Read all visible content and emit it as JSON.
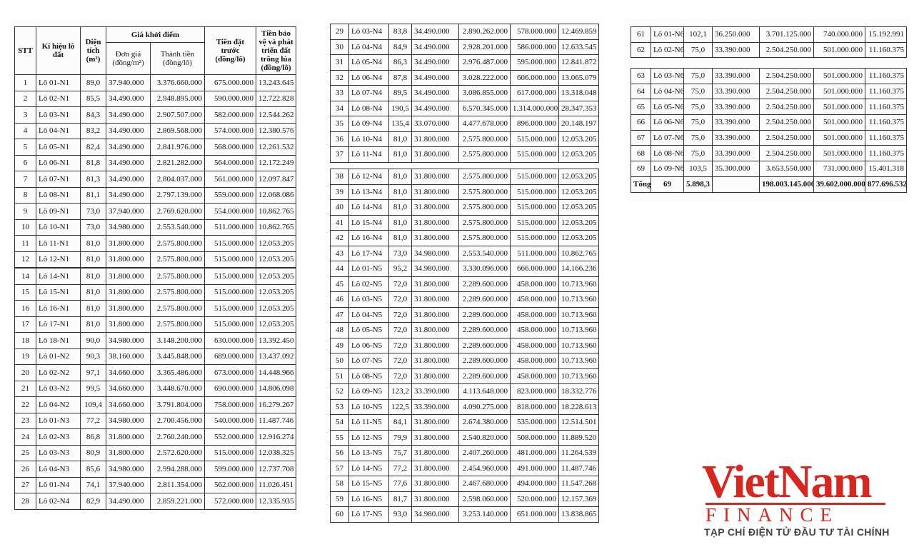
{
  "header": {
    "stt": "STT",
    "lot": "Kí hiệu lô đất",
    "area": "Diện tích (m²)",
    "group": "Giá khởi điểm",
    "unit_price": "Đơn giá (đồng/m²)",
    "total_price": "Thành tiền (đồng/lô)",
    "deposit": "Tiền đặt trước (đồng/lô)",
    "rice_fee": "Tiền bảo vệ và phát triển đất trồng lúa (đồng/lô)"
  },
  "blocks": [
    {
      "rows": [
        [
          "1",
          "Lô 01-N1",
          "89,0",
          "37.940.000",
          "3.376.660.000",
          "675.000.000",
          "13.243.645"
        ],
        [
          "2",
          "Lô 02-N1",
          "85,5",
          "34.490.000",
          "2.948.895.000",
          "590.000.000",
          "12.722.828"
        ],
        [
          "3",
          "Lô 03-N1",
          "84,3",
          "34.490.000",
          "2.907.507.000",
          "582.000.000",
          "12.544.262"
        ],
        [
          "4",
          "Lô 04-N1",
          "83,2",
          "34.490.000",
          "2.869.568.000",
          "574.000.000",
          "12.380.576"
        ],
        [
          "5",
          "Lô 05-N1",
          "82,4",
          "34.490.000",
          "2.841.976.000",
          "568.000.000",
          "12.261.532"
        ],
        [
          "6",
          "Lô 06-N1",
          "81,8",
          "34.490.000",
          "2.821.282.000",
          "564.000.000",
          "12.172.249"
        ],
        [
          "7",
          "Lô 07-N1",
          "81,3",
          "34.490.000",
          "2.804.037.000",
          "561.000.000",
          "12.097.847"
        ],
        [
          "8",
          "Lô 08-N1",
          "81,1",
          "34.490.000",
          "2.797.139.000",
          "559.000.000",
          "12.068.086"
        ],
        [
          "9",
          "Lô 09-N1",
          "73,0",
          "37.940.000",
          "2.769.620.000",
          "554.000.000",
          "10.862.765"
        ],
        [
          "10",
          "Lô 10-N1",
          "73,0",
          "34.980.000",
          "2.553.540.000",
          "511.000.000",
          "10.862.765"
        ],
        [
          "11",
          "Lô 11-N1",
          "81,0",
          "31.800.000",
          "2.575.800.000",
          "515.000.000",
          "12.053.205"
        ],
        [
          "12",
          "Lô 12-N1",
          "81,0",
          "31.800.000",
          "2.575.800.000",
          "515.000.000",
          "12.053.205"
        ]
      ]
    },
    {
      "rows": [
        [
          "14",
          "Lô 14-N1",
          "81,0",
          "31.800.000",
          "2.575.800.000",
          "515.000.000",
          "12.053.205"
        ],
        [
          "15",
          "Lô 15-N1",
          "81,0",
          "31.800.000",
          "2.575.800.000",
          "515.000.000",
          "12.053.205"
        ],
        [
          "16",
          "Lô 16-N1",
          "81,0",
          "31.800.000",
          "2.575.800.000",
          "515.000.000",
          "12.053.205"
        ],
        [
          "17",
          "Lô 17-N1",
          "81,0",
          "31.800.000",
          "2.575.800.000",
          "515.000.000",
          "12.053.205"
        ],
        [
          "18",
          "Lô 18-N1",
          "90,0",
          "34.980.000",
          "3.148.200.000",
          "630.000.000",
          "13.392.450"
        ],
        [
          "19",
          "Lô 01-N2",
          "90,3",
          "38.160.000",
          "3.445.848.000",
          "689.000.000",
          "13.437.092"
        ],
        [
          "20",
          "Lô 02-N2",
          "97,1",
          "34.660.000",
          "3.365.486.000",
          "673.000.000",
          "14.448.966"
        ],
        [
          "21",
          "Lô 03-N2",
          "99,5",
          "34.660.000",
          "3.448.670.000",
          "690.000.000",
          "14.806.098"
        ],
        [
          "22",
          "Lô 04-N2",
          "109,4",
          "34.660.000",
          "3.791.804.000",
          "758.000.000",
          "16.279.267"
        ],
        [
          "23",
          "Lô 01-N3",
          "77,2",
          "34.980.000",
          "2.700.456.000",
          "540.000.000",
          "11.487.746"
        ],
        [
          "24",
          "Lô 02-N3",
          "86,8",
          "31.800.000",
          "2.760.240.000",
          "552.000.000",
          "12.916.274"
        ],
        [
          "25",
          "Lô 03-N3",
          "80,9",
          "31.800.000",
          "2.572.620.000",
          "515.000.000",
          "12.038.325"
        ],
        [
          "26",
          "Lô 04-N3",
          "85,6",
          "34.980.000",
          "2.994.288.000",
          "599.000.000",
          "12.737.708"
        ],
        [
          "27",
          "Lô 01-N4",
          "74,1",
          "37.940.000",
          "2.811.354.000",
          "562.000.000",
          "11.026.451"
        ],
        [
          "28",
          "Lô 02-N4",
          "82,9",
          "34.490.000",
          "2.859.221.000",
          "572.000.000",
          "12.335.935"
        ]
      ]
    },
    {
      "rows": [
        [
          "29",
          "Lô 03-N4",
          "83,8",
          "34.490.000",
          "2.890.262.000",
          "578.000.000",
          "12.469.859"
        ],
        [
          "30",
          "Lô 04-N4",
          "84,9",
          "34.490.000",
          "2.928.201.000",
          "586.000.000",
          "12.633.545"
        ],
        [
          "31",
          "Lô 05-N4",
          "86,3",
          "34.490.000",
          "2.976.487.000",
          "595.000.000",
          "12.841.872"
        ],
        [
          "32",
          "Lô 06-N4",
          "87,8",
          "34.490.000",
          "3.028.222.000",
          "606.000.000",
          "13.065.079"
        ],
        [
          "33",
          "Lô 07-N4",
          "89,5",
          "34.490.000",
          "3.086.855.000",
          "617.000.000",
          "13.318.048"
        ],
        [
          "34",
          "Lô 08-N4",
          "190,5",
          "34.490.000",
          "6.570.345.000",
          "1.314.000.000",
          "28.347.353"
        ],
        [
          "35",
          "Lô 09-N4",
          "135,4",
          "33.070.000",
          "4.477.678.000",
          "896.000.000",
          "20.148.197"
        ],
        [
          "36",
          "Lô 10-N4",
          "81,0",
          "31.800.000",
          "2.575.800.000",
          "515.000.000",
          "12.053.205"
        ],
        [
          "37",
          "Lô 11-N4",
          "81,0",
          "31.800.000",
          "2.575.800.000",
          "515.000.000",
          "12.053.205"
        ]
      ]
    },
    {
      "rows": [
        [
          "38",
          "Lô 12-N4",
          "81,0",
          "31.800.000",
          "2.575.800.000",
          "515.000.000",
          "12.053.205"
        ],
        [
          "39",
          "Lô 13-N4",
          "81,0",
          "31.800.000",
          "2.575.800.000",
          "515.000.000",
          "12.053.205"
        ],
        [
          "40",
          "Lô 14-N4",
          "81,0",
          "31.800.000",
          "2.575.800.000",
          "515.000.000",
          "12.053.205"
        ],
        [
          "41",
          "Lô 15-N4",
          "81,0",
          "31.800.000",
          "2.575.800.000",
          "515.000.000",
          "12.053.205"
        ],
        [
          "42",
          "Lô 16-N4",
          "81,0",
          "31.800.000",
          "2.575.800.000",
          "515.000.000",
          "12.053.205"
        ],
        [
          "43",
          "Lô 17-N4",
          "73,0",
          "34.980.000",
          "2.553.540.000",
          "511.000.000",
          "10.862.765"
        ],
        [
          "44",
          "Lô 01-N5",
          "95,2",
          "34.980.000",
          "3.330.096.000",
          "666.000.000",
          "14.166.236"
        ],
        [
          "45",
          "Lô 02-N5",
          "72,0",
          "31.800.000",
          "2.289.600.000",
          "458.000.000",
          "10.713.960"
        ],
        [
          "46",
          "Lô 03-N5",
          "72,0",
          "31.800.000",
          "2.289.600.000",
          "458.000.000",
          "10.713.960"
        ],
        [
          "47",
          "Lô 04-N5",
          "72,0",
          "31.800.000",
          "2.289.600.000",
          "458.000.000",
          "10.713.960"
        ],
        [
          "48",
          "Lô 05-N5",
          "72,0",
          "31.800.000",
          "2.289.600.000",
          "458.000.000",
          "10.713.960"
        ],
        [
          "49",
          "Lô 06-N5",
          "72,0",
          "31.800.000",
          "2.289.600.000",
          "458.000.000",
          "10.713.960"
        ],
        [
          "50",
          "Lô 07-N5",
          "72,0",
          "31.800.000",
          "2.289.600.000",
          "458.000.000",
          "10.713.960"
        ],
        [
          "51",
          "Lô 08-N5",
          "72,0",
          "31.800.000",
          "2.289.600.000",
          "458.000.000",
          "10.713.960"
        ],
        [
          "52",
          "Lô 09-N5",
          "123,2",
          "33.390.000",
          "4.113.648.000",
          "823.000.000",
          "18.332.776"
        ],
        [
          "53",
          "Lô 10-N5",
          "122,5",
          "33.390.000",
          "4.090.275.000",
          "818.000.000",
          "18.228.613"
        ],
        [
          "54",
          "Lô 11-N5",
          "84,1",
          "31.800.000",
          "2.674.380.000",
          "535.000.000",
          "12.514.501"
        ],
        [
          "55",
          "Lô 12-N5",
          "79,9",
          "31.800.000",
          "2.540.820.000",
          "508.000.000",
          "11.889.520"
        ],
        [
          "56",
          "Lô 13-N5",
          "75,7",
          "31.800.000",
          "2.407.260.000",
          "481.000.000",
          "11.264.539"
        ],
        [
          "57",
          "Lô 14-N5",
          "77,2",
          "31.800.000",
          "2.454.960.000",
          "491.000.000",
          "11.487.746"
        ],
        [
          "58",
          "Lô 15-N5",
          "77,6",
          "31.800.000",
          "2.467.680.000",
          "494.000.000",
          "11.547.268"
        ],
        [
          "59",
          "Lô 16-N5",
          "81,7",
          "31.800.000",
          "2.598.060.000",
          "520.000.000",
          "12.157.369"
        ],
        [
          "60",
          "Lô 17-N5",
          "93,0",
          "34.980.000",
          "3.253.140.000",
          "651.000.000",
          "13.838.865"
        ]
      ]
    },
    {
      "rows": [
        [
          "61",
          "Lô 01-N6",
          "102,1",
          "36.250.000",
          "3.701.125.000",
          "740.000.000",
          "15.192.991"
        ],
        [
          "62",
          "Lô 02-N6",
          "75,0",
          "33.390.000",
          "2.504.250.000",
          "501.000.000",
          "11.160.375"
        ]
      ]
    },
    {
      "rows": [
        [
          "63",
          "Lô 03-N6",
          "75,0",
          "33.390.000",
          "2.504.250.000",
          "501.000.000",
          "11.160.375"
        ],
        [
          "64",
          "Lô 04-N6",
          "75,0",
          "33.390.000",
          "2.504.250.000",
          "501.000.000",
          "11.160.375"
        ],
        [
          "65",
          "Lô 05-N6",
          "75,0",
          "33.390.000",
          "2.504.250.000",
          "501.000.000",
          "11.160.375"
        ],
        [
          "66",
          "Lô 06-N6",
          "75,0",
          "33.390.000",
          "2.504.250.000",
          "501.000.000",
          "11.160.375"
        ],
        [
          "67",
          "Lô 07-N6",
          "75,0",
          "33.390.000",
          "2.504.250.000",
          "501.000.000",
          "11.160.375"
        ],
        [
          "68",
          "Lô 08-N6",
          "75,0",
          "33.390.000",
          "2.504.250.000",
          "501.000.000",
          "11.160.375"
        ],
        [
          "69",
          "Lô 09-N6",
          "103,5",
          "35.300.000",
          "3.653.550.000",
          "731.000.000",
          "15.401.318"
        ]
      ],
      "total": {
        "label": "Tổng",
        "count": "69",
        "area": "5.898,3",
        "total_price": "198.003.145.000",
        "deposit": "39.602.000.000",
        "rice_fee": "877.696.532"
      }
    }
  ],
  "logo": {
    "brand": "VietNam",
    "sub": "FINANCE",
    "tagline": "TẠP CHÍ ĐIỆN TỬ ĐẦU TƯ TÀI CHÍNH"
  }
}
